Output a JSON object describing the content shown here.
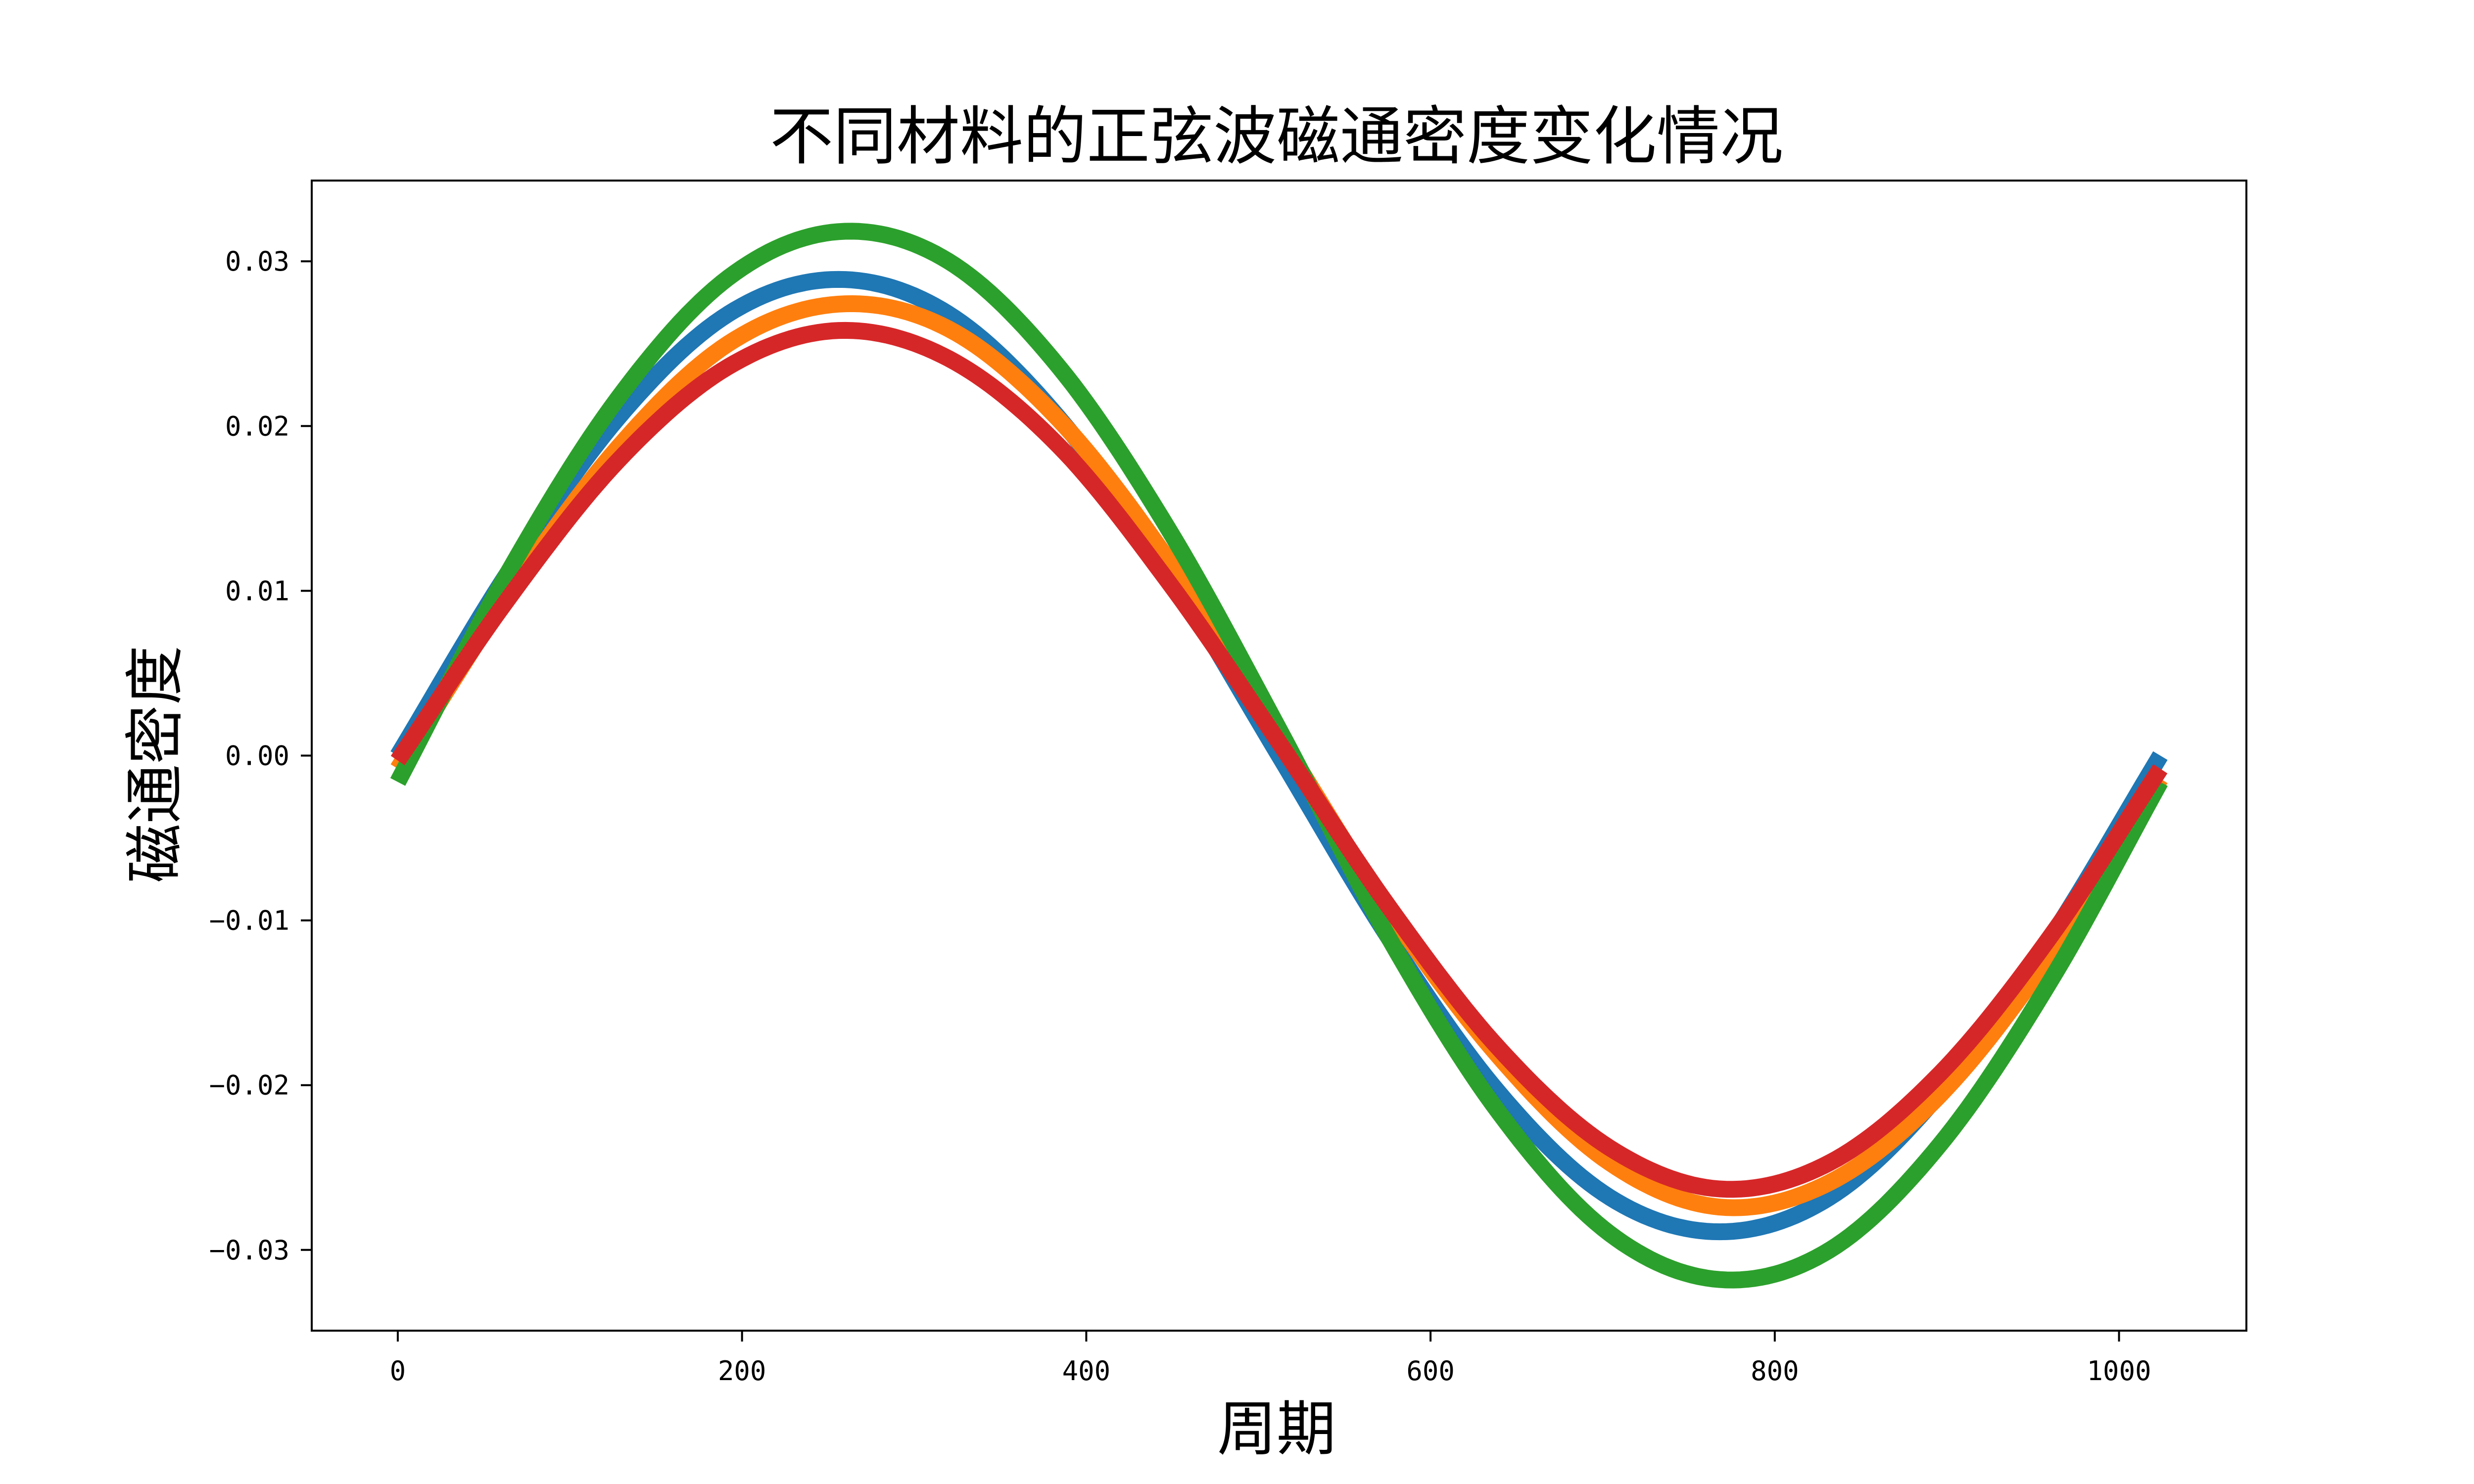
{
  "chart_data": {
    "type": "line",
    "title": "不同材料的正弦波磁通密度变化情况",
    "xlabel": "周期",
    "ylabel": "磁通密度",
    "xlim": [
      -50,
      1074
    ],
    "ylim": [
      -0.0349,
      0.0349
    ],
    "xticks": [
      0,
      200,
      400,
      600,
      800,
      1000
    ],
    "xtick_labels": [
      "0",
      "200",
      "400",
      "600",
      "800",
      "1000"
    ],
    "yticks": [
      -0.03,
      -0.02,
      -0.01,
      0.0,
      0.01,
      0.02,
      0.03
    ],
    "ytick_labels": [
      "−0.03",
      "−0.02",
      "−0.01",
      "0.00",
      "0.01",
      "0.02",
      "0.03"
    ],
    "grid": false,
    "legend": "none",
    "series": [
      {
        "color": "#1f77b4",
        "x": [
          0,
          64,
          128,
          192,
          256,
          320,
          384,
          448,
          512,
          576,
          640,
          704,
          768,
          832,
          896,
          960,
          1024
        ],
        "y": [
          0.0,
          0.0111,
          0.0205,
          0.0268,
          0.0289,
          0.0268,
          0.0205,
          0.0111,
          0.0,
          -0.0111,
          -0.0205,
          -0.0268,
          -0.0289,
          -0.0268,
          -0.0205,
          -0.0111,
          0.0
        ]
      },
      {
        "color": "#ff7f0e",
        "x": [
          0,
          64,
          128,
          192,
          256,
          320,
          384,
          448,
          512,
          576,
          640,
          704,
          768,
          832,
          896,
          960,
          1024
        ],
        "y": [
          -0.0008,
          0.0097,
          0.0187,
          0.025,
          0.0274,
          0.0259,
          0.0204,
          0.0118,
          0.0012,
          -0.0094,
          -0.0183,
          -0.0247,
          -0.0274,
          -0.0259,
          -0.0206,
          -0.0121,
          -0.0014
        ]
      },
      {
        "color": "#2ca02c",
        "x": [
          0,
          64,
          128,
          192,
          256,
          320,
          384,
          448,
          512,
          576,
          640,
          704,
          768,
          832,
          896,
          960,
          1024
        ],
        "y": [
          -0.0016,
          0.0111,
          0.0217,
          0.029,
          0.0318,
          0.03,
          0.0236,
          0.0137,
          0.0016,
          -0.0111,
          -0.0217,
          -0.029,
          -0.0318,
          -0.03,
          -0.0236,
          -0.0137,
          -0.0016
        ]
      },
      {
        "color": "#d62728",
        "x": [
          0,
          64,
          128,
          192,
          256,
          320,
          384,
          448,
          512,
          576,
          640,
          704,
          768,
          832,
          896,
          960,
          1024
        ],
        "y": [
          -0.0003,
          0.0095,
          0.0179,
          0.0236,
          0.0258,
          0.0241,
          0.0188,
          0.0105,
          0.0008,
          -0.0092,
          -0.0178,
          -0.0238,
          -0.0263,
          -0.0247,
          -0.0193,
          -0.011,
          -0.0008
        ]
      }
    ]
  }
}
